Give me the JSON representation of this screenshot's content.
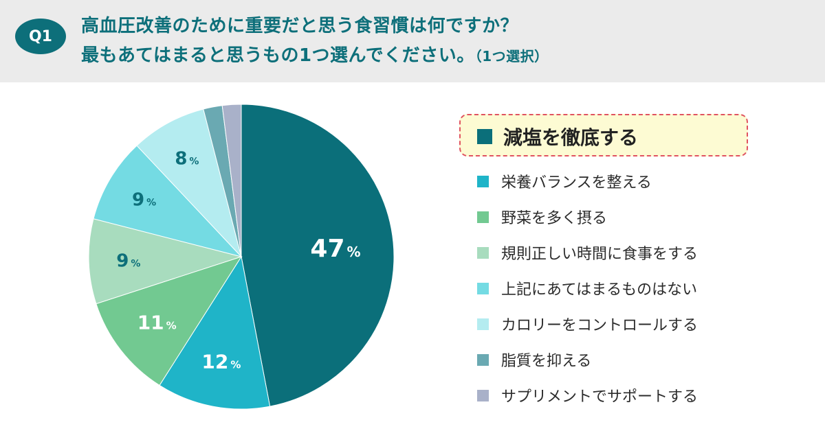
{
  "header": {
    "badge": "Q1",
    "title_line1": "高血圧改善のために重要だと思う食習慣は何ですか？",
    "title_line2": "最もあてはまると思うもの1つ選んでください。",
    "title_suffix": "（1つ選択）"
  },
  "colors": {
    "header_bg": "#ebebeb",
    "accent": "#0d6f7a",
    "highlight_fill": "#fdfbd3",
    "highlight_border": "#e05260"
  },
  "chart_data": {
    "type": "pie",
    "start": "12 o'clock",
    "direction": "clockwise",
    "unit": "%",
    "slices": [
      {
        "name": "減塩を徹底する",
        "value": 47,
        "label": "47",
        "color": "#0b6f7a"
      },
      {
        "name": "栄養バランスを整える",
        "value": 12,
        "label": "12",
        "color": "#1fb4c8"
      },
      {
        "name": "野菜を多く摂る",
        "value": 11,
        "label": "11",
        "color": "#72c991"
      },
      {
        "name": "規則正しい時間に食事をする",
        "value": 9,
        "label": "9",
        "color": "#a8dcbe"
      },
      {
        "name": "上記にあてはまるものはない",
        "value": 9,
        "label": "9",
        "color": "#74dbe3"
      },
      {
        "name": "カロリーをコントロールする",
        "value": 8,
        "label": "8",
        "color": "#b4ecf0"
      },
      {
        "name": "脂質を抑える",
        "value": 2,
        "label": "",
        "color": "#6aa9b2"
      },
      {
        "name": "サプリメントでサポートする",
        "value": 2,
        "label": "",
        "color": "#a9b1c9"
      }
    ]
  }
}
